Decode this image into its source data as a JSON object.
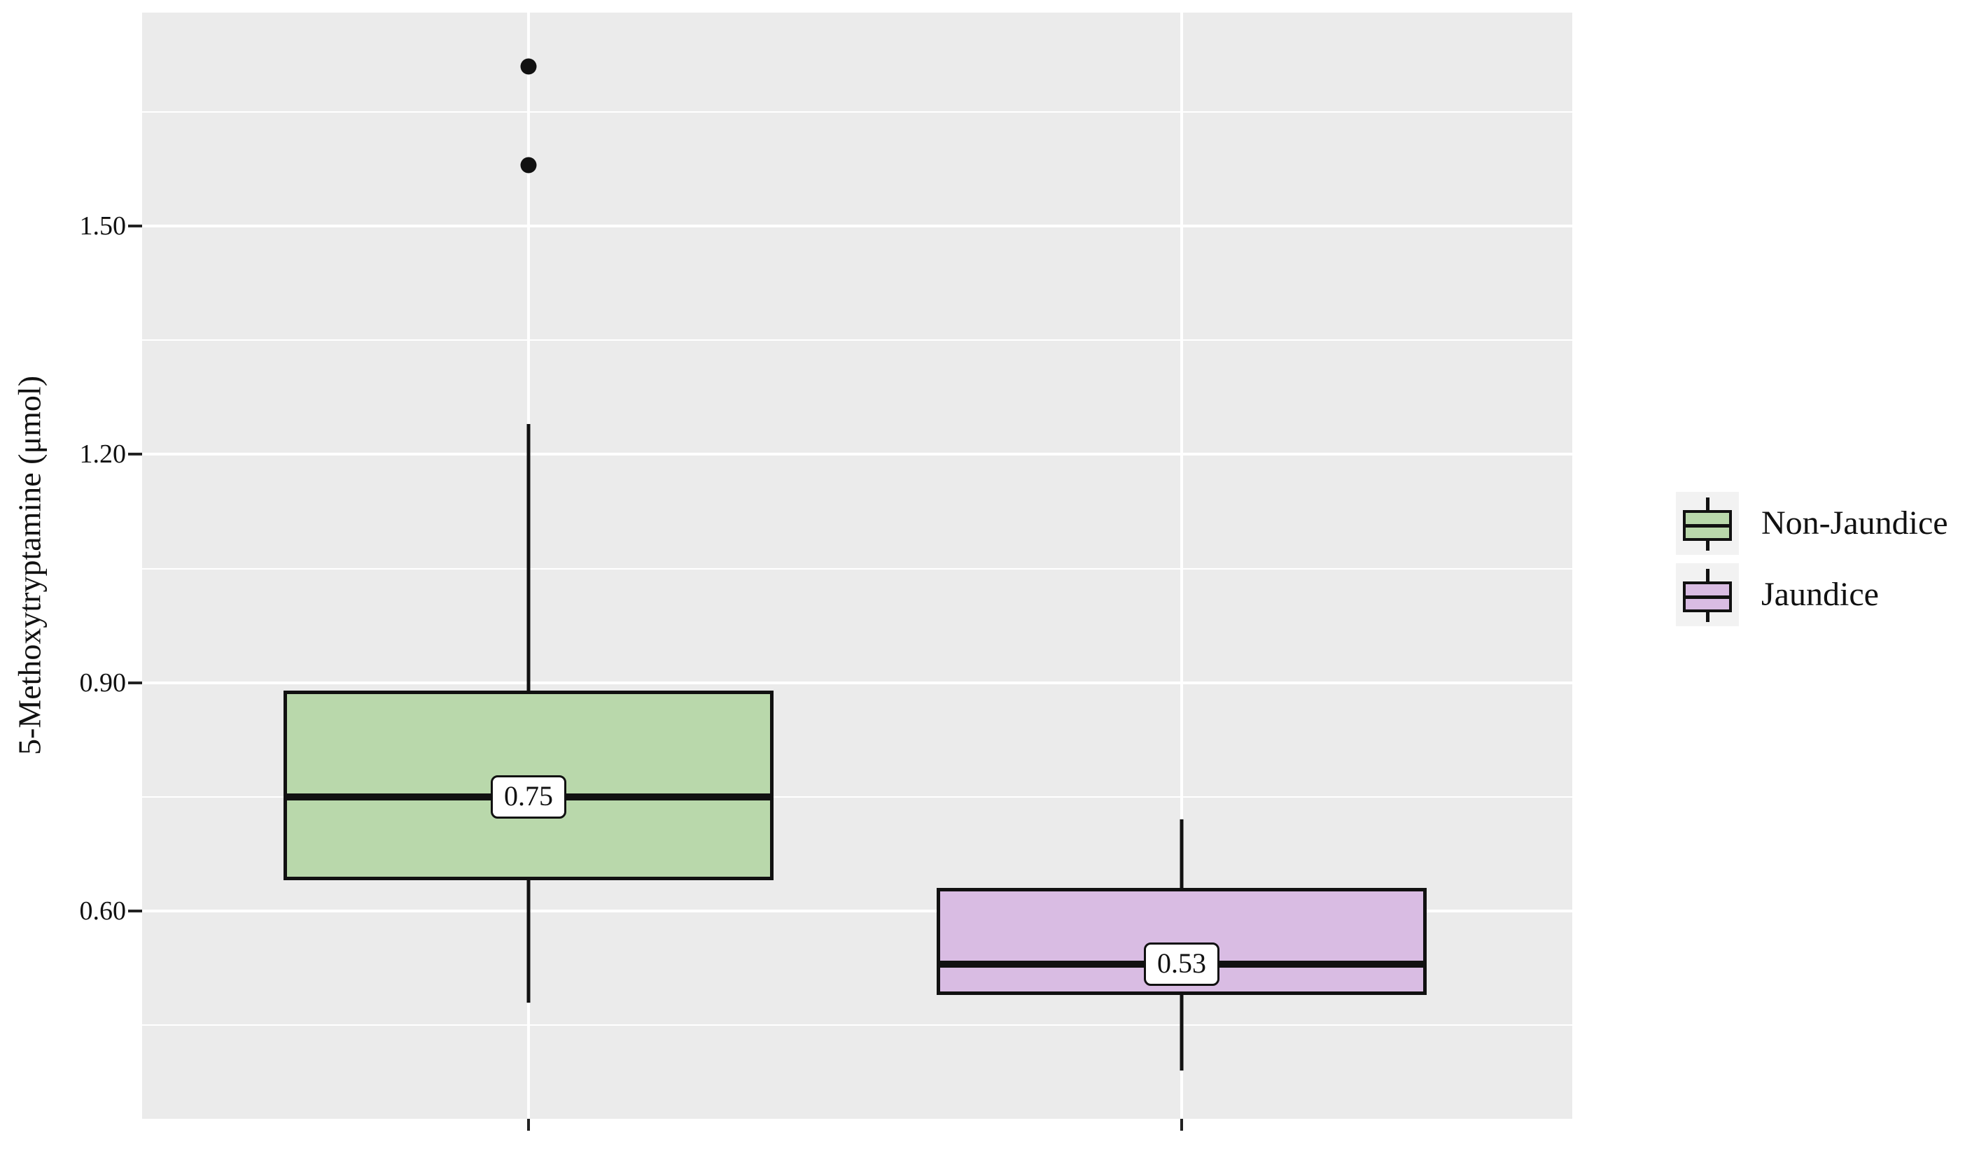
{
  "chart_data": {
    "type": "boxplot",
    "title": "",
    "xlabel": "",
    "ylabel": "5-Methoxytryptamine (μmol)",
    "ylim": [
      0.33,
      1.78
    ],
    "grid": true,
    "panel_background": "#ebebeb",
    "gridline_color": "#ffffff",
    "legend_position": "right",
    "legend_key_background": "#f2f2f2",
    "y_axis": {
      "major_ticks": [
        {
          "value": 1.5,
          "label": "1.50"
        },
        {
          "value": 1.2,
          "label": "1.20"
        },
        {
          "value": 0.9,
          "label": "0.90"
        },
        {
          "value": 0.6,
          "label": "0.60"
        }
      ],
      "minor_gridlines": [
        1.65,
        1.35,
        1.05,
        0.75,
        0.45
      ]
    },
    "series": [
      {
        "name": "Non-Jaundice",
        "color": "#b9d8ab",
        "whisker_low": 0.48,
        "q1": 0.64,
        "median": 0.75,
        "median_label": "0.75",
        "q3": 0.89,
        "whisker_high": 1.24,
        "outliers": [
          1.71,
          1.58
        ]
      },
      {
        "name": "Jaundice",
        "color": "#d9bce3",
        "whisker_low": 0.39,
        "q1": 0.49,
        "median": 0.53,
        "median_label": "0.53",
        "q3": 0.63,
        "whisker_high": 0.72,
        "outliers": []
      }
    ]
  }
}
